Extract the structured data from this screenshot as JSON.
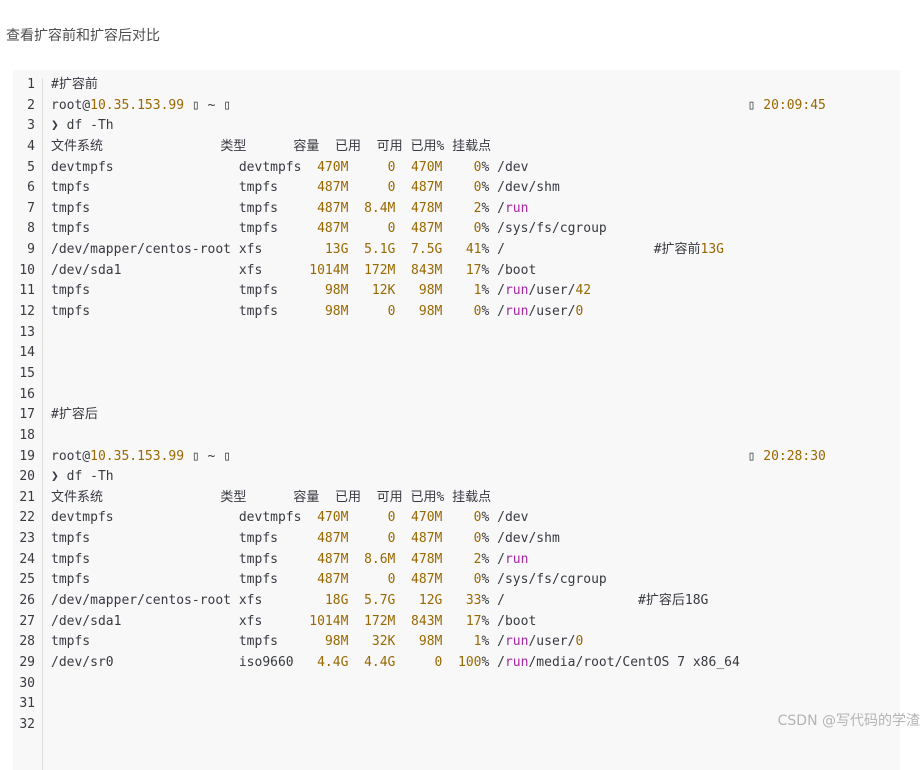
{
  "page_title": "查看扩容前和扩容后对比",
  "watermark": "CSDN @写代码的学渣",
  "colors": {
    "number": "#986801",
    "keyword": "#a626a4",
    "text": "#383a42",
    "code_bg": "#f8f8f8"
  },
  "sections": [
    {
      "comment": "#扩容前",
      "prompt": {
        "user": "root@",
        "host": "10.35.153.99",
        "glyph": "▯",
        "dir": "~",
        "time": "20:09:45"
      },
      "command": "❯ df -Th",
      "header": [
        "文件系统",
        "类型",
        "容量",
        "已用",
        "可用",
        "已用%",
        "挂载点"
      ],
      "rows": [
        {
          "fs": "devtmpfs",
          "type": "devtmpfs",
          "size": "470M",
          "used": "0",
          "avail": "470M",
          "use": "0%",
          "mount": "/dev"
        },
        {
          "fs": "tmpfs",
          "type": "tmpfs",
          "size": "487M",
          "used": "0",
          "avail": "487M",
          "use": "0%",
          "mount": "/dev/shm"
        },
        {
          "fs": "tmpfs",
          "type": "tmpfs",
          "size": "487M",
          "used": "8.4M",
          "avail": "478M",
          "use": "2%",
          "mount": "/run"
        },
        {
          "fs": "tmpfs",
          "type": "tmpfs",
          "size": "487M",
          "used": "0",
          "avail": "487M",
          "use": "0%",
          "mount": "/sys/fs/cgroup"
        },
        {
          "fs": "/dev/mapper/centos-root",
          "type": "xfs",
          "size": "13G",
          "used": "5.1G",
          "avail": "7.5G",
          "use": "41%",
          "mount": "/",
          "note": [
            {
              "t": "#扩容前"
            },
            {
              "t": "13G",
              "n": true
            }
          ]
        },
        {
          "fs": "/dev/sda1",
          "type": "xfs",
          "size": "1014M",
          "used": "172M",
          "avail": "843M",
          "use": "17%",
          "mount": "/boot"
        },
        {
          "fs": "tmpfs",
          "type": "tmpfs",
          "size": "98M",
          "used": "12K",
          "avail": "98M",
          "use": "1%",
          "mount": "/run/user/42"
        },
        {
          "fs": "tmpfs",
          "type": "tmpfs",
          "size": "98M",
          "used": "0",
          "avail": "98M",
          "use": "0%",
          "mount": "/run/user/0"
        }
      ]
    },
    {
      "comment": "#扩容后",
      "prompt": {
        "user": "root@",
        "host": "10.35.153.99",
        "glyph": "▯",
        "dir": "~",
        "time": "20:28:30"
      },
      "command": "❯ df -Th",
      "header": [
        "文件系统",
        "类型",
        "容量",
        "已用",
        "可用",
        "已用%",
        "挂载点"
      ],
      "rows": [
        {
          "fs": "devtmpfs",
          "type": "devtmpfs",
          "size": "470M",
          "used": "0",
          "avail": "470M",
          "use": "0%",
          "mount": "/dev"
        },
        {
          "fs": "tmpfs",
          "type": "tmpfs",
          "size": "487M",
          "used": "0",
          "avail": "487M",
          "use": "0%",
          "mount": "/dev/shm"
        },
        {
          "fs": "tmpfs",
          "type": "tmpfs",
          "size": "487M",
          "used": "8.6M",
          "avail": "478M",
          "use": "2%",
          "mount": "/run"
        },
        {
          "fs": "tmpfs",
          "type": "tmpfs",
          "size": "487M",
          "used": "0",
          "avail": "487M",
          "use": "0%",
          "mount": "/sys/fs/cgroup"
        },
        {
          "fs": "/dev/mapper/centos-root",
          "type": "xfs",
          "size": "18G",
          "used": "5.7G",
          "avail": "12G",
          "use": "33%",
          "mount": "/",
          "note": [
            {
              "t": "#扩容后18G"
            }
          ]
        },
        {
          "fs": "/dev/sda1",
          "type": "xfs",
          "size": "1014M",
          "used": "172M",
          "avail": "843M",
          "use": "17%",
          "mount": "/boot"
        },
        {
          "fs": "tmpfs",
          "type": "tmpfs",
          "size": "98M",
          "used": "32K",
          "avail": "98M",
          "use": "1%",
          "mount": "/run/user/0"
        },
        {
          "fs": "/dev/sr0",
          "type": "iso9660",
          "size": "4.4G",
          "used": "4.4G",
          "avail": "0",
          "use": "100%",
          "mount": "/run/media/root/CentOS 7 x86_64"
        }
      ]
    }
  ]
}
